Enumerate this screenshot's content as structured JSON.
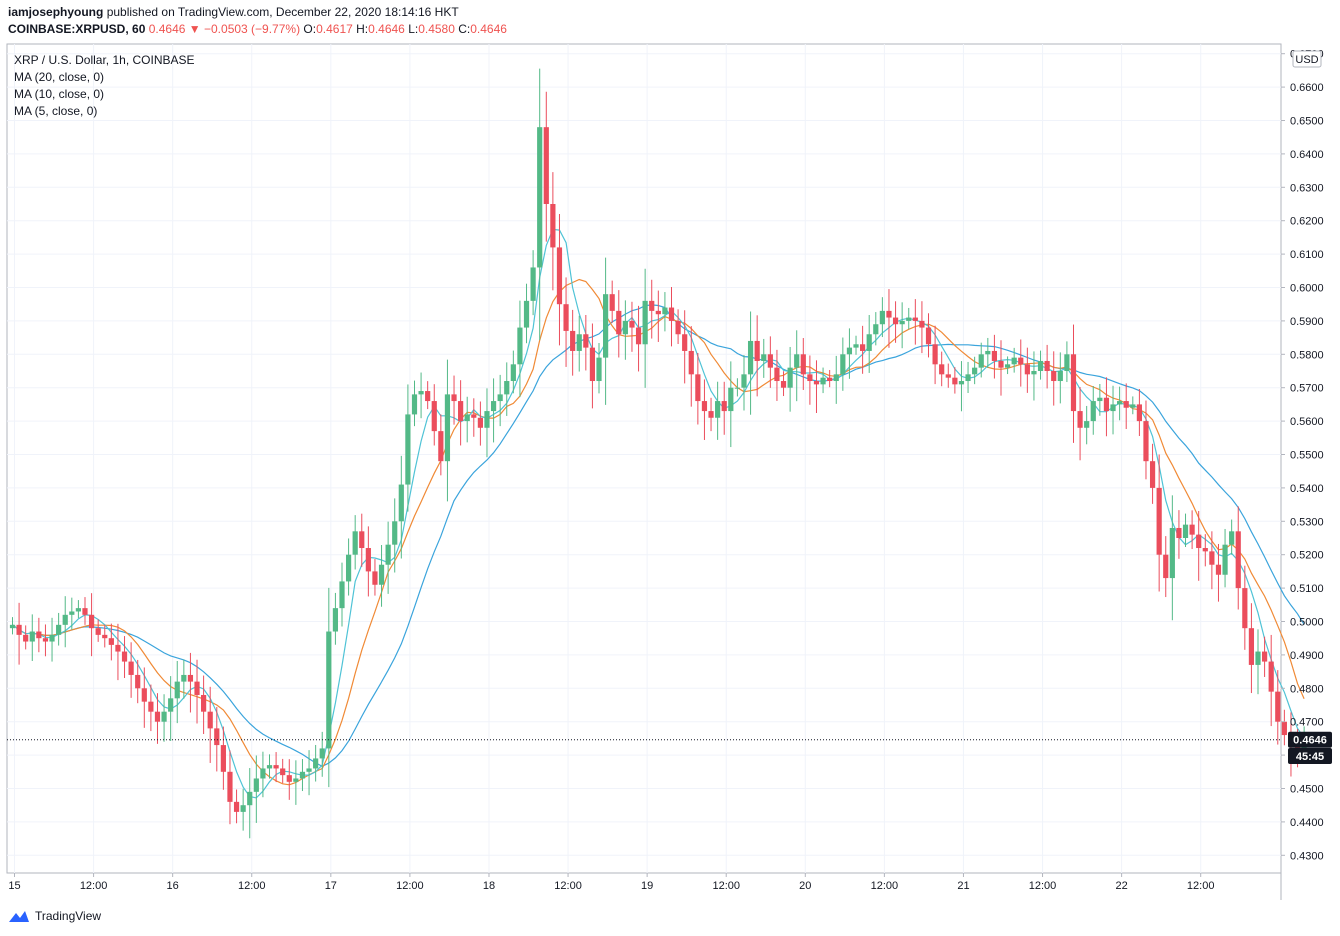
{
  "header": {
    "author": "iamjosephyoung",
    "published": "published on TradingView.com, December 22, 2020 18:14:16 HKT",
    "symbol": "COINBASE:XRPUSD, 60",
    "price": "0.4646",
    "change_arrow": "▼",
    "change": "−0.0503 (−9.77%)",
    "o_label": "O:",
    "o_value": "0.4617",
    "h_label": "H:",
    "h_value": "0.4646",
    "l_label": "L:",
    "l_value": "0.4580",
    "c_label": "C:",
    "c_value": "0.4646"
  },
  "legend": {
    "title": "XRP / U.S. Dollar, 1h, COINBASE",
    "ma20": "MA (20, close, 0)",
    "ma10": "MA (10, close, 0)",
    "ma5": "MA (5, close, 0)"
  },
  "footer": {
    "brand": "TradingView"
  },
  "colors": {
    "up": "#53b987",
    "down": "#eb4d5c",
    "ma20": "#3aa4dc",
    "ma10": "#f08a36",
    "ma5": "#4fc3d6",
    "grid": "#f0f3fa"
  },
  "chart_data": {
    "type": "candlestick",
    "title": "XRP / U.S. Dollar, 1h, COINBASE",
    "currency_label": "USD",
    "ylim": [
      0.4265,
      0.6795
    ],
    "y_ticks": [
      "0.4300",
      "0.4400",
      "0.4500",
      "0.4600",
      "0.4700",
      "0.4800",
      "0.4900",
      "0.5000",
      "0.5100",
      "0.5200",
      "0.5300",
      "0.5400",
      "0.5500",
      "0.5600",
      "0.5700",
      "0.5800",
      "0.5900",
      "0.6000",
      "0.6100",
      "0.6200",
      "0.6300",
      "0.6400",
      "0.6500",
      "0.6600",
      "0.6700"
    ],
    "x_ticks": [
      {
        "label": "15",
        "i": 0
      },
      {
        "label": "12:00",
        "i": 12
      },
      {
        "label": "16",
        "i": 24
      },
      {
        "label": "12:00",
        "i": 36
      },
      {
        "label": "17",
        "i": 48
      },
      {
        "label": "12:00",
        "i": 60
      },
      {
        "label": "18",
        "i": 72
      },
      {
        "label": "12:00",
        "i": 84
      },
      {
        "label": "19",
        "i": 96
      },
      {
        "label": "12:00",
        "i": 108
      },
      {
        "label": "20",
        "i": 120
      },
      {
        "label": "12:00",
        "i": 132
      },
      {
        "label": "21",
        "i": 144
      },
      {
        "label": "12:00",
        "i": 156
      },
      {
        "label": "22",
        "i": 168
      },
      {
        "label": "12:00",
        "i": 180
      }
    ],
    "price_marker": "0.4646",
    "countdown": "45:45",
    "grid": true,
    "closes": [
      0.499,
      0.496,
      0.494,
      0.497,
      0.495,
      0.494,
      0.496,
      0.499,
      0.502,
      0.503,
      0.504,
      0.502,
      0.498,
      0.496,
      0.495,
      0.493,
      0.491,
      0.488,
      0.484,
      0.48,
      0.476,
      0.473,
      0.47,
      0.473,
      0.477,
      0.482,
      0.484,
      0.482,
      0.478,
      0.473,
      0.468,
      0.463,
      0.455,
      0.446,
      0.443,
      0.445,
      0.449,
      0.453,
      0.456,
      0.457,
      0.456,
      0.454,
      0.452,
      0.453,
      0.455,
      0.456,
      0.459,
      0.462,
      0.497,
      0.504,
      0.512,
      0.52,
      0.527,
      0.522,
      0.515,
      0.511,
      0.517,
      0.523,
      0.53,
      0.541,
      0.562,
      0.568,
      0.569,
      0.566,
      0.557,
      0.548,
      0.568,
      0.566,
      0.56,
      0.562,
      0.561,
      0.558,
      0.563,
      0.566,
      0.568,
      0.572,
      0.577,
      0.588,
      0.596,
      0.606,
      0.648,
      0.625,
      0.612,
      0.595,
      0.587,
      0.581,
      0.586,
      0.582,
      0.572,
      0.579,
      0.598,
      0.593,
      0.586,
      0.59,
      0.588,
      0.583,
      0.596,
      0.593,
      0.592,
      0.594,
      0.59,
      0.586,
      0.581,
      0.574,
      0.566,
      0.563,
      0.561,
      0.566,
      0.563,
      0.57,
      0.57,
      0.574,
      0.584,
      0.578,
      0.58,
      0.576,
      0.572,
      0.57,
      0.576,
      0.58,
      0.574,
      0.572,
      0.571,
      0.573,
      0.572,
      0.574,
      0.58,
      0.582,
      0.583,
      0.581,
      0.586,
      0.589,
      0.593,
      0.591,
      0.589,
      0.59,
      0.591,
      0.59,
      0.588,
      0.583,
      0.577,
      0.574,
      0.573,
      0.571,
      0.572,
      0.574,
      0.576,
      0.58,
      0.581,
      0.578,
      0.576,
      0.577,
      0.579,
      0.577,
      0.574,
      0.575,
      0.578,
      0.575,
      0.572,
      0.575,
      0.58,
      0.563,
      0.558,
      0.56,
      0.566,
      0.567,
      0.563,
      0.565,
      0.566,
      0.564,
      0.565,
      0.56,
      0.548,
      0.54,
      0.52,
      0.513,
      0.528,
      0.525,
      0.529,
      0.526,
      0.522,
      0.521,
      0.517,
      0.514,
      0.523,
      0.527,
      0.51,
      0.498,
      0.487,
      0.491,
      0.488,
      0.479,
      0.47,
      0.466,
      0.463,
      0.462,
      0.4646
    ]
  }
}
